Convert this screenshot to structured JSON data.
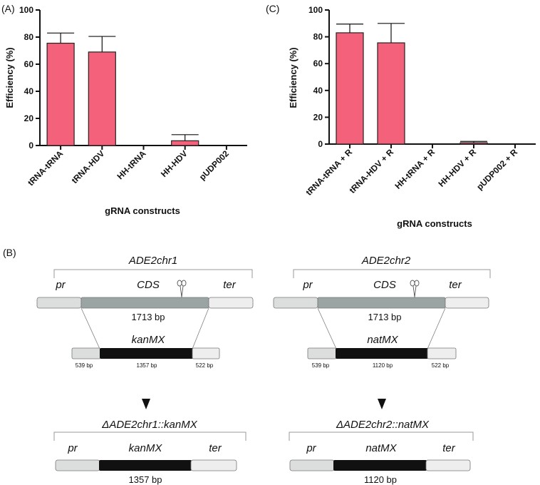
{
  "panel_labels": {
    "a": "(A)",
    "b": "(B)",
    "c": "(C)"
  },
  "chart_data": [
    {
      "type": "bar",
      "panel": "(A)",
      "categories": [
        "tRNA-tRNA",
        "tRNA-HDV",
        "HH-tRNA",
        "HH-HDV",
        "pUDP002"
      ],
      "values": [
        75.5,
        69,
        0,
        3.5,
        0
      ],
      "errors": [
        7.5,
        11.5,
        0,
        4.5,
        0
      ],
      "xlabel": "gRNA constructs",
      "ylabel": "Efficiency (%)",
      "ylim": [
        0,
        100
      ],
      "yticks": [
        0,
        20,
        40,
        60,
        80,
        100
      ],
      "grid": false
    },
    {
      "type": "bar",
      "panel": "(C)",
      "categories": [
        "tRNA-tRNA + R",
        "tRNA-HDV + R",
        "HH-tRNA + R",
        "HH-HDV + R",
        "pUDP002 + R"
      ],
      "values": [
        83,
        75.5,
        0,
        1,
        0
      ],
      "errors": [
        6.5,
        14.5,
        0,
        1,
        0
      ],
      "xlabel": "gRNA constructs",
      "ylabel": "Efficiency (%)",
      "ylim": [
        0,
        100
      ],
      "yticks": [
        0,
        20,
        40,
        60,
        80,
        100
      ],
      "grid": false
    }
  ],
  "diagram": {
    "left": {
      "locus": "ADE2chr1",
      "pr": "pr",
      "cds": "CDS",
      "ter": "ter",
      "cds_length": "1713 bp",
      "cassette": "kanMX",
      "left_arm": "539 bp",
      "marker_len": "1357 bp",
      "right_arm": "522 bp",
      "result": "ΔADE2chr1::kanMX",
      "result_pr": "pr",
      "result_marker": "kanMX",
      "result_ter": "ter",
      "result_length": "1357 bp"
    },
    "right": {
      "locus": "ADE2chr2",
      "pr": "pr",
      "cds": "CDS",
      "ter": "ter",
      "cds_length": "1713 bp",
      "cassette": "natMX",
      "left_arm": "539 bp",
      "marker_len": "1120 bp",
      "right_arm": "522 bp",
      "result": "ΔADE2chr2::natMX",
      "result_pr": "pr",
      "result_marker": "natMX",
      "result_ter": "ter",
      "result_length": "1120 bp"
    }
  },
  "colors": {
    "bar": "#f4617a",
    "cds": "#9aa4a2",
    "flank": "#dcdedd",
    "ter": "#eeeeee",
    "marker": "#111111"
  }
}
